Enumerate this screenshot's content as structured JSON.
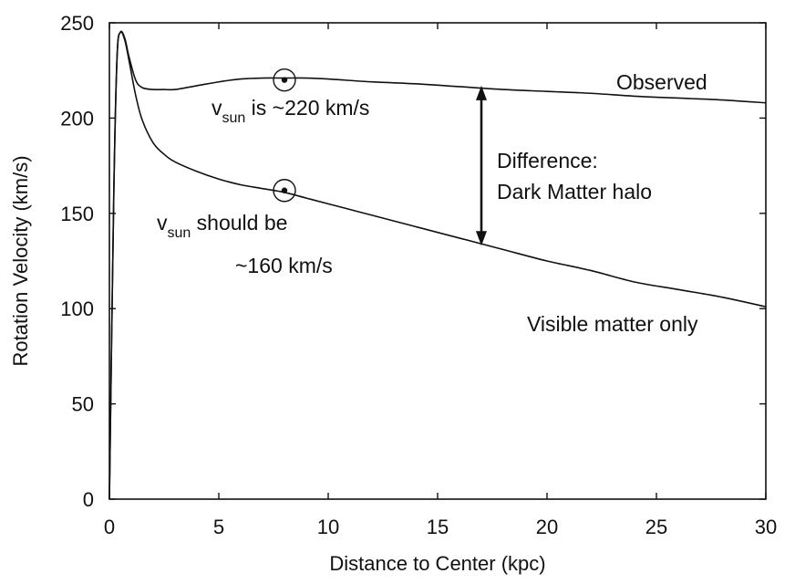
{
  "chart_data": {
    "type": "line",
    "xlabel": "Distance to Center (kpc)",
    "ylabel": "Rotation Velocity (km/s)",
    "xlim": [
      0,
      30
    ],
    "ylim": [
      0,
      250
    ],
    "xticks": [
      0,
      5,
      10,
      15,
      20,
      25,
      30
    ],
    "yticks": [
      0,
      50,
      100,
      150,
      200,
      250
    ],
    "grid": false,
    "series": [
      {
        "name": "Observed",
        "x": [
          0,
          0.2,
          0.35,
          0.5,
          0.7,
          0.9,
          1.2,
          1.5,
          2.0,
          2.5,
          3.0,
          4.0,
          5.0,
          6.0,
          7.0,
          8.0,
          9.0,
          10.0,
          12.0,
          14.0,
          16.0,
          18.0,
          20.0,
          22.0,
          24.0,
          26.0,
          28.0,
          30.0
        ],
        "y": [
          0,
          160,
          232,
          245,
          242,
          232,
          220,
          216,
          215,
          215,
          215,
          217,
          219,
          220.5,
          221,
          221,
          221,
          220.5,
          219,
          218,
          216.5,
          215,
          214,
          213,
          211.5,
          210.5,
          209.5,
          208
        ]
      },
      {
        "name": "Visible matter only",
        "x": [
          0,
          0.2,
          0.35,
          0.5,
          0.7,
          0.9,
          1.2,
          1.5,
          2.0,
          2.5,
          3.0,
          4.0,
          5.0,
          6.0,
          7.0,
          8.0,
          9.0,
          10.0,
          12.0,
          14.0,
          16.0,
          18.0,
          20.0,
          22.0,
          24.0,
          26.0,
          28.0,
          30.0
        ],
        "y": [
          0,
          160,
          232,
          245,
          241,
          230,
          212,
          199,
          187,
          181,
          177,
          172,
          168,
          165,
          163,
          161,
          158,
          155,
          149,
          143,
          137,
          131,
          125,
          120,
          114,
          110,
          106,
          101
        ]
      }
    ],
    "markers": [
      {
        "x": 8,
        "y": 220
      },
      {
        "x": 8,
        "y": 162
      }
    ],
    "arrow": {
      "x": 17,
      "y_from": 133,
      "y_to": 217
    },
    "annotations": {
      "observed": "Observed",
      "visible": "Visible matter only",
      "difference_1": "Difference:",
      "difference_2": "Dark Matter halo",
      "vsun_v": "v",
      "vsun_sub": "sun",
      "vsun_obs": " is ~220 km/s",
      "vsun_should": " should be",
      "vsun_kms": "~160 km/s"
    }
  }
}
